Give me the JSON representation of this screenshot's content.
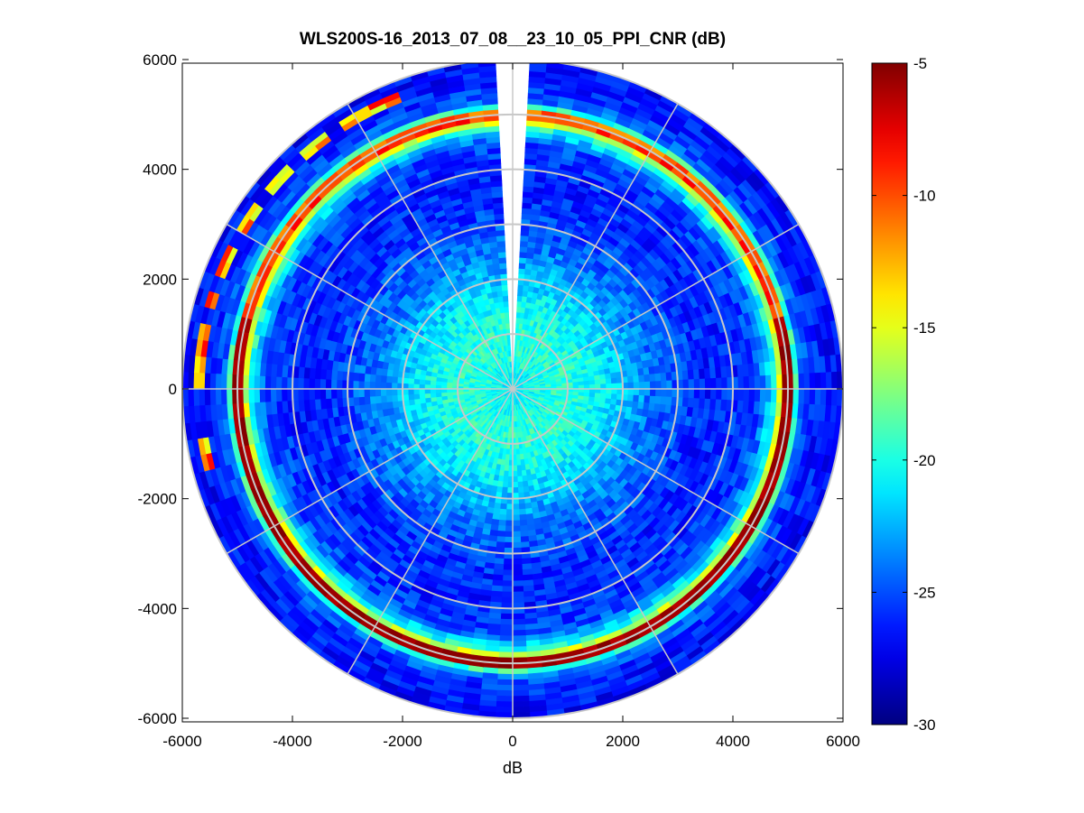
{
  "chart_data": {
    "type": "heatmap",
    "subtype": "polar-ppi",
    "title": "WLS200S-16_2013_07_08__23_10_05_PPI_CNR (dB)",
    "xlabel": "dB",
    "ylabel": "",
    "xlim": [
      -6000,
      6000
    ],
    "ylim": [
      -6000,
      6000
    ],
    "x_ticks": [
      -6000,
      -4000,
      -2000,
      0,
      2000,
      4000,
      6000
    ],
    "y_ticks": [
      -6000,
      -4000,
      -2000,
      0,
      2000,
      4000,
      6000
    ],
    "x_tick_labels": [
      "-6000",
      "-4000",
      "-2000",
      "0",
      "2000",
      "4000",
      "6000"
    ],
    "y_tick_labels": [
      "-6000",
      "-4000",
      "-2000",
      "0",
      "2000",
      "4000",
      "6000"
    ],
    "grid": true,
    "polar_grid": {
      "ring_radii": [
        1000,
        2000,
        3000,
        4000,
        5000,
        6000
      ],
      "spoke_angles_deg": [
        0,
        30,
        60,
        90,
        120,
        150,
        180,
        210,
        240,
        270,
        300,
        330
      ]
    },
    "max_range": 6000,
    "gap_sector_deg": [
      -4,
      4
    ],
    "colorbar": {
      "colormap": "jet",
      "clim": [
        -30,
        -5
      ],
      "ticks": [
        -30,
        -25,
        -20,
        -15,
        -10,
        -5
      ],
      "tick_labels": [
        "-30",
        "-25",
        "-20",
        "-15",
        "-10",
        "-5"
      ]
    },
    "field_profile": {
      "range": [
        0,
        500,
        1000,
        1500,
        2000,
        2500,
        3000,
        3500,
        4000,
        4500,
        4800,
        5000,
        5200,
        5500,
        6000
      ],
      "cnr_db": [
        -21,
        -20,
        -19.5,
        -20.5,
        -22,
        -24,
        -25,
        -26,
        -26,
        -25,
        -19,
        -6,
        -24,
        -26,
        -27
      ]
    },
    "hot_ring": {
      "radius": 5000,
      "cnr_db": -5,
      "sector_deg": [
        75,
        285
      ]
    },
    "outer_arc": {
      "radius": 5700,
      "cnr_db": -8,
      "sector_deg": [
        250,
        340
      ]
    }
  }
}
